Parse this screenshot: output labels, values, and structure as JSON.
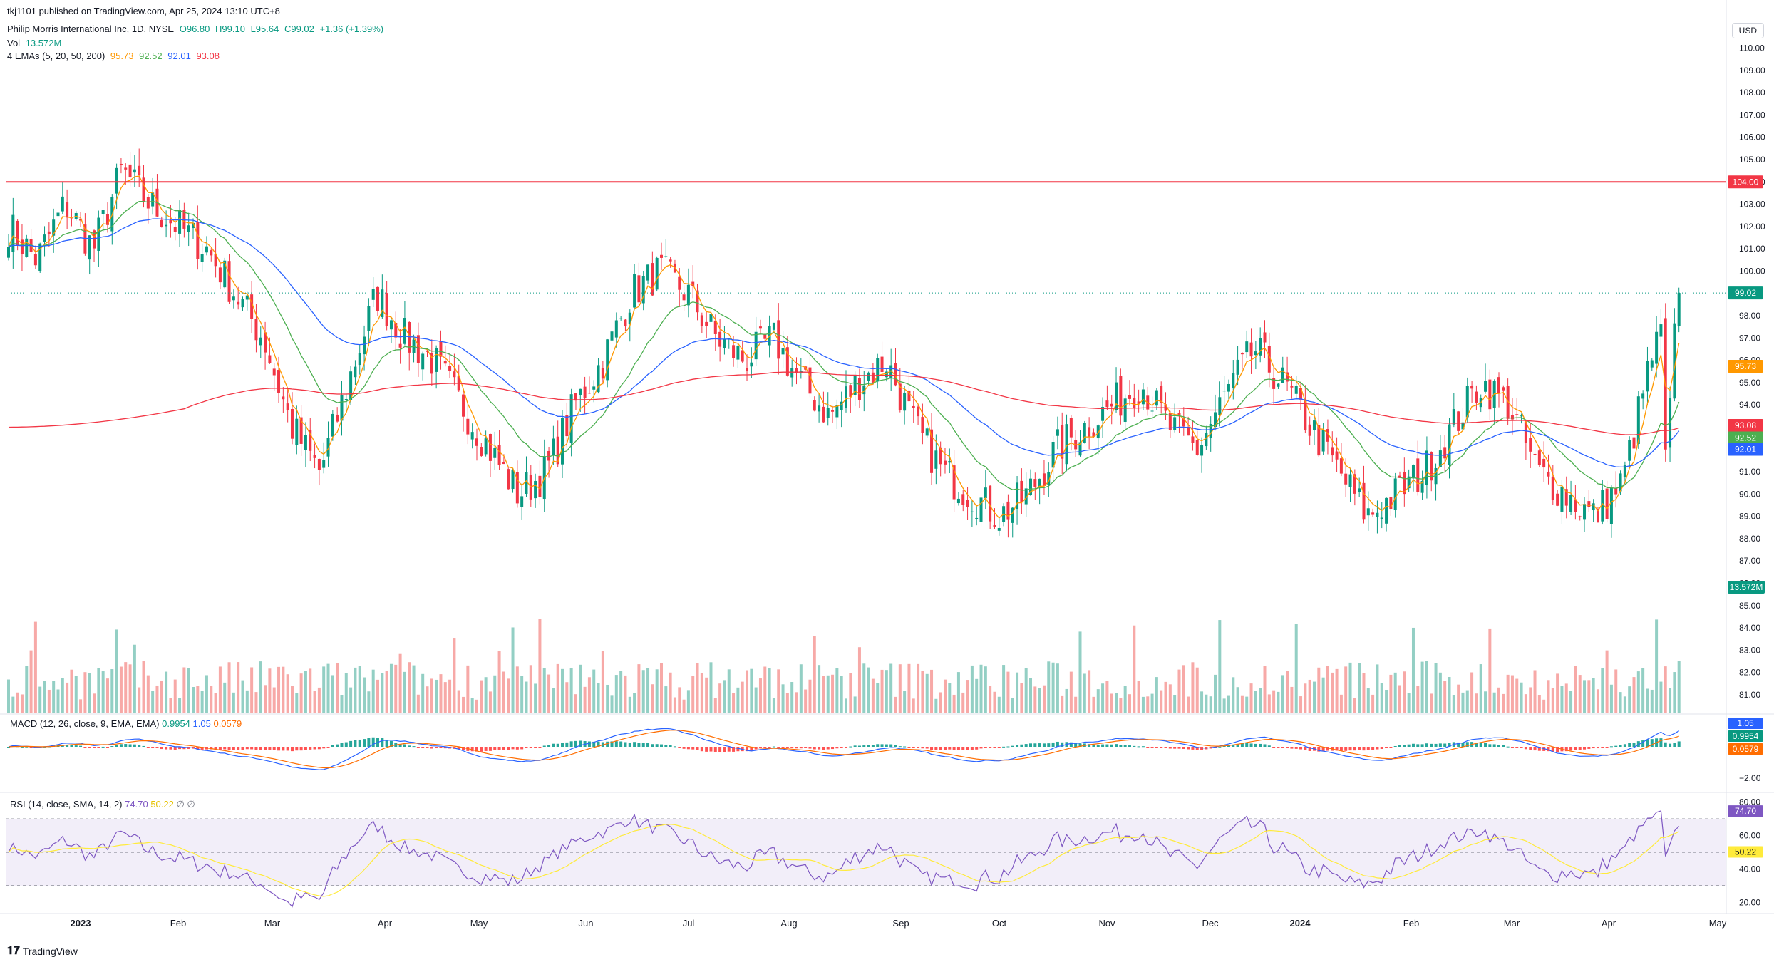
{
  "header": {
    "publisher": "tkj1101 published on TradingView.com, Apr 25, 2024 13:10 UTC+8",
    "symbol_line": "Philip Morris International Inc, 1D, NYSE",
    "open": "O96.80",
    "high": "H99.10",
    "low": "L95.64",
    "close": "C99.02",
    "change": "+1.36 (+1.39%)",
    "vol_label": "Vol",
    "vol_value": "13.572M",
    "ema_label": "4 EMAs (5, 20, 50, 200)",
    "ema_values": [
      "95.73",
      "92.52",
      "92.01",
      "93.08"
    ]
  },
  "currency_button": "USD",
  "price_axis": {
    "ticks": [
      "110.00",
      "109.00",
      "108.00",
      "107.00",
      "106.00",
      "105.00",
      "104.00",
      "103.00",
      "102.00",
      "101.00",
      "100.00",
      "99.00",
      "98.00",
      "97.00",
      "96.00",
      "95.00",
      "94.00",
      "93.00",
      "92.00",
      "91.00",
      "90.00",
      "89.00",
      "88.00",
      "87.00",
      "86.00",
      "85.00",
      "84.00",
      "83.00",
      "82.00",
      "81.00"
    ],
    "tags": [
      {
        "label": "104.00",
        "value": 104.0,
        "color": "#f23645"
      },
      {
        "label": "99.02",
        "value": 99.02,
        "color": "#089981"
      },
      {
        "label": "95.73",
        "value": 95.73,
        "color": "#ff9800"
      },
      {
        "label": "93.08",
        "value": 93.08,
        "color": "#f23645"
      },
      {
        "label": "92.52",
        "value": 92.52,
        "color": "#4caf50"
      },
      {
        "label": "92.01",
        "value": 92.01,
        "color": "#2962ff"
      }
    ],
    "volume_tag": "13.572M"
  },
  "macd": {
    "label": "MACD (12, 26, close, 9, EMA, EMA)",
    "values": [
      "0.9954",
      "1.05",
      "0.0579"
    ],
    "ticks": [
      "2.00",
      "−2.00"
    ],
    "tags": [
      {
        "label": "1.05",
        "color": "#2962ff"
      },
      {
        "label": "0.9954",
        "color": "#089981"
      },
      {
        "label": "0.0579",
        "color": "#ff6d00"
      }
    ]
  },
  "rsi": {
    "label": "RSI (14, close, SMA, 14, 2)",
    "values": [
      "74.70",
      "50.22"
    ],
    "extra": "∅  ∅",
    "ticks": [
      "80.00",
      "60.00",
      "40.00",
      "20.00"
    ],
    "tags": [
      {
        "label": "74.70",
        "color": "#7e57c2"
      },
      {
        "label": "50.22",
        "color": "#ffeb3b",
        "text": "#131722"
      }
    ]
  },
  "time_axis": [
    "2023",
    "Feb",
    "Mar",
    "Apr",
    "May",
    "Jun",
    "Jul",
    "Aug",
    "Sep",
    "Oct",
    "Nov",
    "Dec",
    "2024",
    "Feb",
    "Mar",
    "Apr",
    "May"
  ],
  "footer": {
    "brand": "TradingView"
  },
  "colors": {
    "up": "#089981",
    "down": "#f23645",
    "ema5": "#ff9800",
    "ema20": "#4caf50",
    "ema50": "#2962ff",
    "ema200": "#f23645",
    "rsi": "#7e57c2",
    "rsi_ma": "#ffeb3b"
  },
  "chart_data": {
    "type": "candlestick",
    "price_level_line": 104.0,
    "ohlc_anchor_closes": [
      102,
      100.5,
      103,
      101,
      104.5,
      103,
      102,
      101,
      99,
      97,
      93,
      91,
      95,
      99,
      97,
      96,
      94,
      92,
      90,
      91,
      94,
      96,
      99,
      100,
      99,
      97,
      96,
      97,
      95,
      93.5,
      95,
      96,
      93,
      91,
      90,
      89,
      90,
      92,
      93,
      94,
      95,
      93,
      92,
      94.5,
      96.5,
      95,
      93,
      91,
      89,
      90,
      91,
      93,
      95,
      94,
      91,
      90,
      89,
      90.5,
      96,
      99
    ]
  }
}
